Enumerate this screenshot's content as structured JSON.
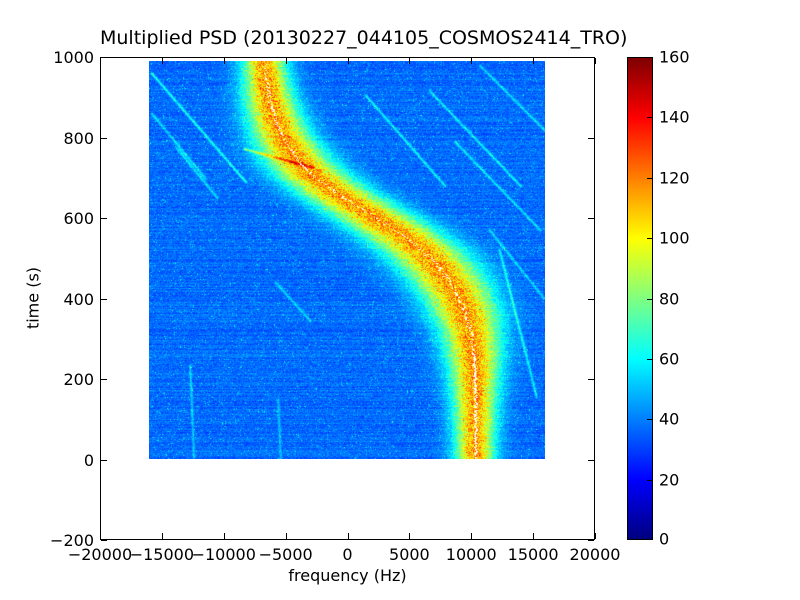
{
  "chart_data": {
    "type": "heatmap",
    "title": "Multiplied PSD (20130227_044105_COSMOS2414_TRO)",
    "xlabel": "frequency (Hz)",
    "ylabel": "time (s)",
    "xlim": [
      -20000,
      20000
    ],
    "ylim": [
      -200,
      1000
    ],
    "x_tick_values": [
      -20000,
      -15000,
      -10000,
      -5000,
      0,
      5000,
      10000,
      15000,
      20000
    ],
    "x_tick_labels": [
      "−20000",
      "−15000",
      "−10000",
      "−5000",
      "0",
      "5000",
      "10000",
      "15000",
      "20000"
    ],
    "y_tick_values": [
      -200,
      0,
      200,
      400,
      600,
      800,
      1000
    ],
    "y_tick_labels": [
      "−200",
      "0",
      "200",
      "400",
      "600",
      "800",
      "1000"
    ],
    "grid": false,
    "colorbar": {
      "min": 0,
      "max": 160,
      "tick_values": [
        0,
        20,
        40,
        60,
        80,
        100,
        120,
        140,
        160
      ],
      "tick_labels": [
        "0",
        "20",
        "40",
        "60",
        "80",
        "100",
        "120",
        "140",
        "160"
      ],
      "colormap": "jet",
      "stops": [
        [
          "#00007f",
          0
        ],
        [
          "#0000ff",
          0.125
        ],
        [
          "#00ffff",
          0.375
        ],
        [
          "#ffff00",
          0.625
        ],
        [
          "#ff0000",
          0.875
        ],
        [
          "#7f0000",
          1
        ]
      ]
    },
    "data_extent": {
      "freq_hz": [
        -16000,
        16000
      ],
      "time_s": [
        0,
        990
      ]
    },
    "background_noise_range": [
      30,
      45
    ],
    "doppler_trace": {
      "peak_psd": 115,
      "band_sigma_hz_min_max": [
        1100,
        2300
      ],
      "points_time_freq": [
        [
          0,
          10350
        ],
        [
          120,
          10350
        ],
        [
          200,
          10320
        ],
        [
          260,
          10220
        ],
        [
          320,
          9950
        ],
        [
          380,
          9350
        ],
        [
          430,
          8500
        ],
        [
          480,
          7300
        ],
        [
          520,
          6000
        ],
        [
          560,
          4300
        ],
        [
          600,
          2300
        ],
        [
          630,
          700
        ],
        [
          660,
          -800
        ],
        [
          700,
          -2600
        ],
        [
          740,
          -3900
        ],
        [
          780,
          -4800
        ],
        [
          820,
          -5500
        ],
        [
          860,
          -5950
        ],
        [
          900,
          -6300
        ],
        [
          950,
          -6550
        ],
        [
          990,
          -6700
        ]
      ]
    },
    "interference_streaks": [
      [
        -15800,
        960,
        -8200,
        690,
        26
      ],
      [
        -15800,
        860,
        -11500,
        700,
        20
      ],
      [
        -13800,
        775,
        -10500,
        650,
        20
      ],
      [
        -8300,
        772,
        -2800,
        726,
        34
      ],
      [
        -12400,
        5,
        -12700,
        235,
        16
      ],
      [
        -5400,
        0,
        -5600,
        150,
        14
      ],
      [
        -3000,
        345,
        -5800,
        440,
        18
      ],
      [
        1500,
        905,
        7900,
        680,
        22
      ],
      [
        6700,
        915,
        14000,
        680,
        22
      ],
      [
        8700,
        790,
        15600,
        570,
        20
      ],
      [
        10700,
        980,
        15900,
        820,
        20
      ],
      [
        12300,
        520,
        15300,
        155,
        22
      ],
      [
        11500,
        570,
        15900,
        400,
        18
      ]
    ]
  }
}
